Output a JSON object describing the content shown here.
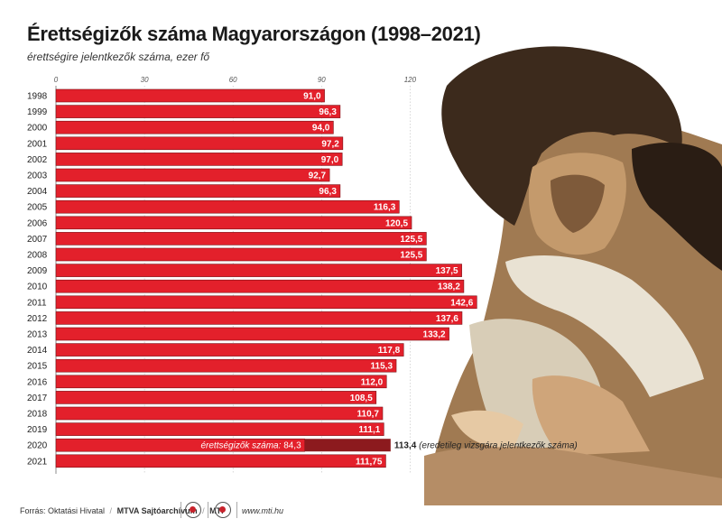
{
  "header": {
    "title": "Érettségizők száma Magyarországon (1998–2021)",
    "subtitle": "érettségire jelentkezők száma, ezer fő"
  },
  "footer": {
    "source_prefix": "Forrás: Oktatási Hivatal",
    "sep": "/",
    "archive": "MTVA Sajtóarchívum",
    "agency": "MTI",
    "url": "www.mti.hu"
  },
  "colors": {
    "bar": "#e3202b",
    "bar_stroke": "#7a1015",
    "dark_bar": "#8c1a1e",
    "label": "#ffffff"
  },
  "chart_data": {
    "type": "bar",
    "orientation": "horizontal",
    "title": "Érettségizők száma Magyarországon (1998–2021)",
    "subtitle": "érettségire jelentkezők száma, ezer fő",
    "xlim": [
      0,
      150
    ],
    "ticks": [
      0,
      30,
      60,
      90,
      120
    ],
    "categories": [
      "1998",
      "1999",
      "2000",
      "2001",
      "2002",
      "2003",
      "2004",
      "2005",
      "2006",
      "2007",
      "2008",
      "2009",
      "2010",
      "2011",
      "2012",
      "2013",
      "2014",
      "2015",
      "2016",
      "2017",
      "2018",
      "2019",
      "2020",
      "2021"
    ],
    "values": [
      91.0,
      96.3,
      94.0,
      97.2,
      97.0,
      92.7,
      96.3,
      116.3,
      120.5,
      125.5,
      125.5,
      137.5,
      138.2,
      142.6,
      137.6,
      133.2,
      117.8,
      115.3,
      112.0,
      108.5,
      110.7,
      111.1,
      113.4,
      111.75
    ],
    "labels": [
      "91,0",
      "96,3",
      "94,0",
      "97,2",
      "97,0",
      "92,7",
      "96,3",
      "116,3",
      "120,5",
      "125,5",
      "125,5",
      "137,5",
      "138,2",
      "142,6",
      "137,6",
      "133,2",
      "117,8",
      "115,3",
      "112,0",
      "108,5",
      "110,7",
      "111,1",
      "113,4",
      "111,75"
    ],
    "highlight": {
      "category": "2020",
      "actual_value": 84.3,
      "actual_label_prefix": "érettségizők száma:",
      "actual_label_value": "84,3",
      "total_label": "113,4",
      "total_note": "(eredetileg vizsgára jelentkezők száma)"
    }
  }
}
